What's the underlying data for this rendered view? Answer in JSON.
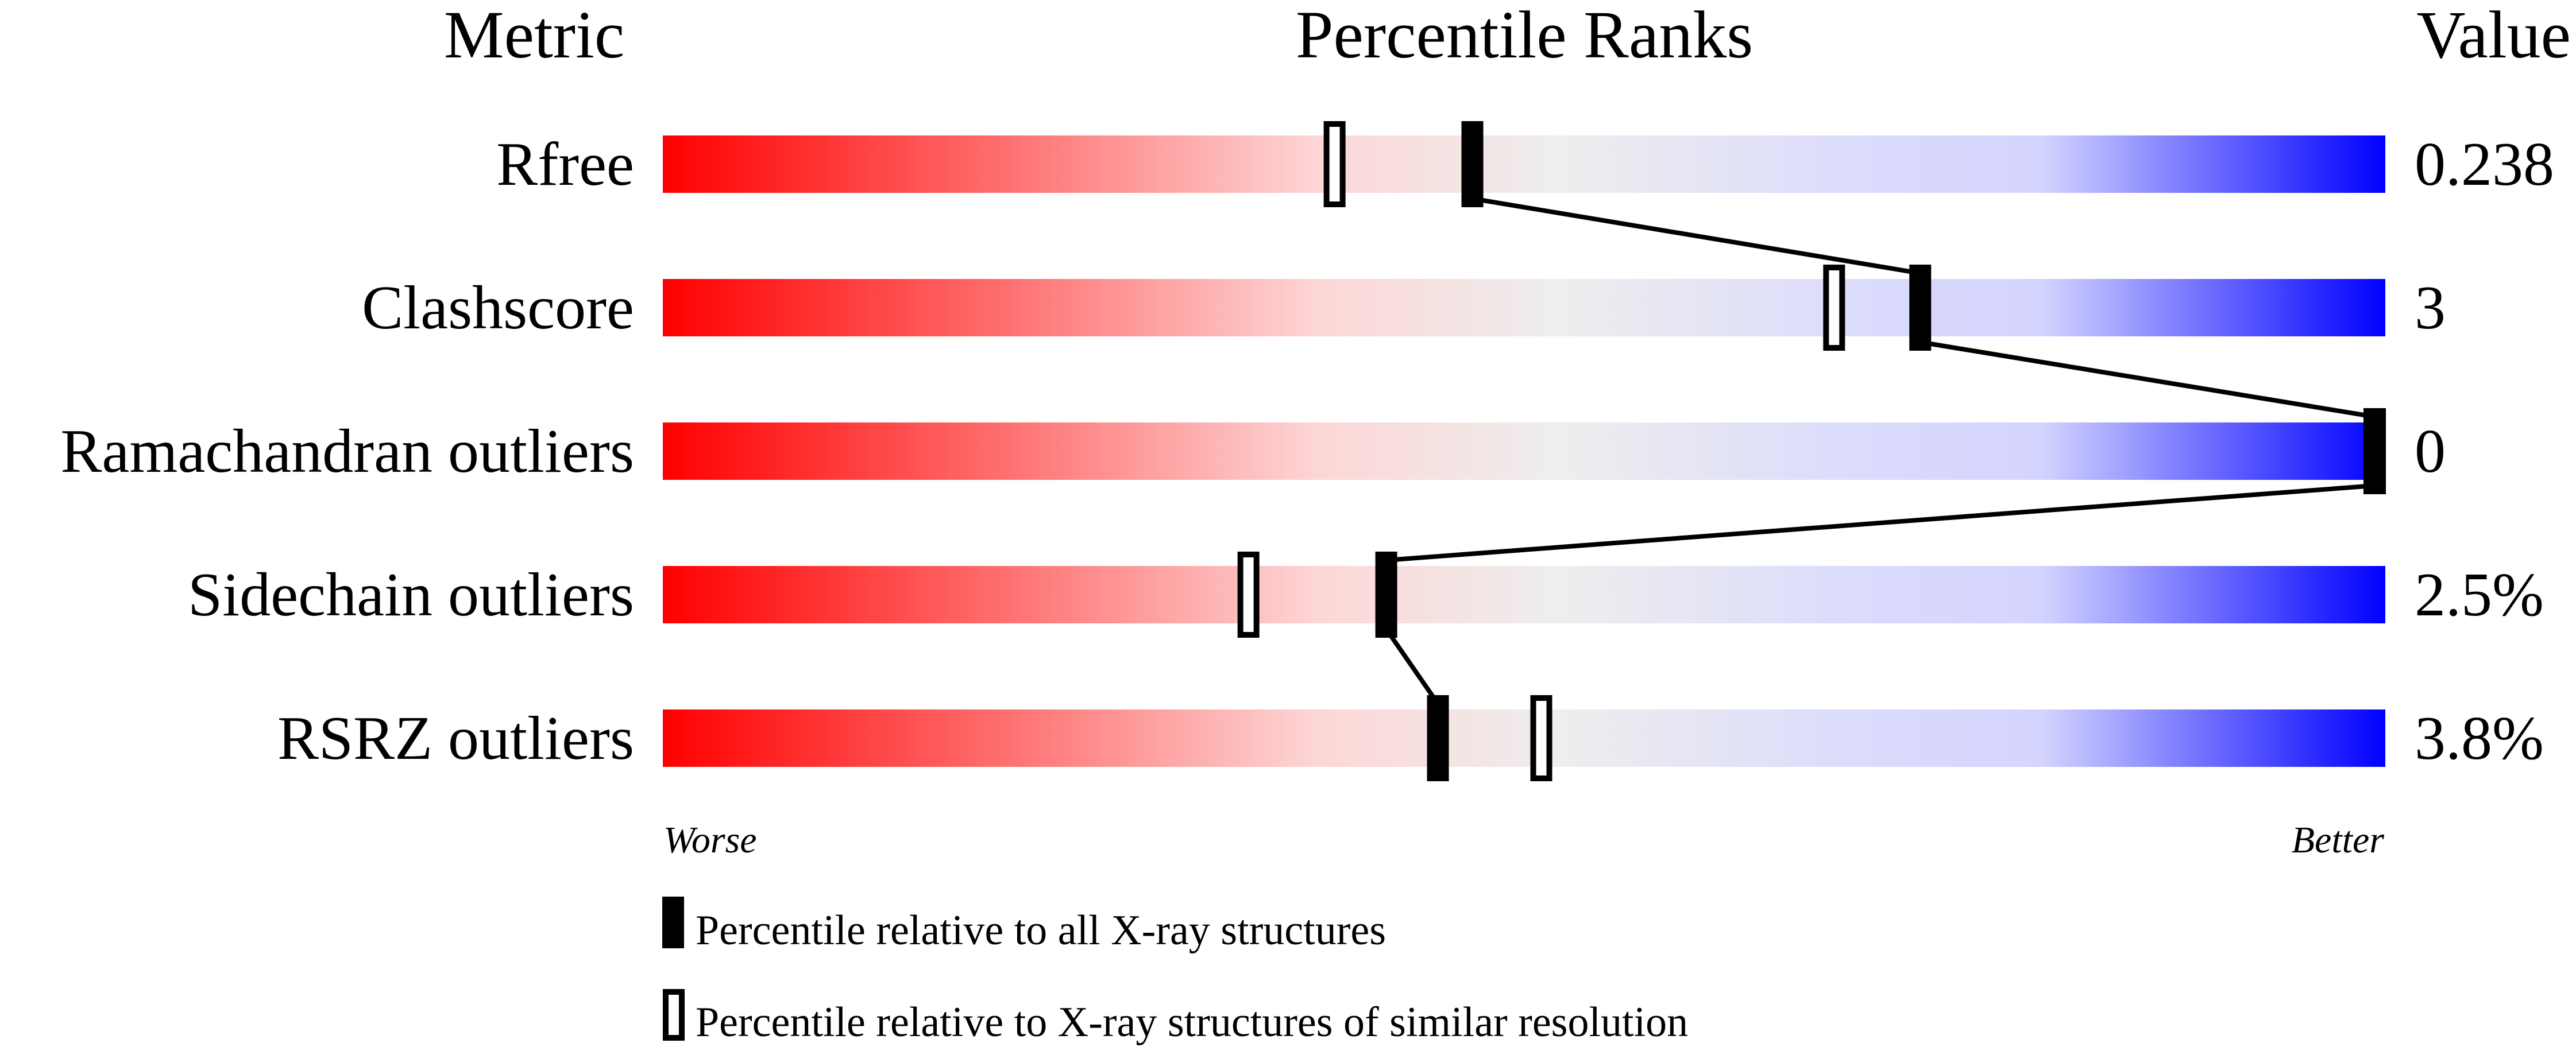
{
  "chart_data": {
    "type": "percentile-rank-slider",
    "headers": {
      "metric": "Metric",
      "ranks": "Percentile Ranks",
      "value": "Value"
    },
    "xlim": [
      0,
      100
    ],
    "axis_ends": {
      "left": "Worse",
      "right": "Better"
    },
    "gradient_colors": [
      "#ff0000",
      "#ffdddd",
      "#eeeeee",
      "#ddddff",
      "#0000ff"
    ],
    "metrics": [
      {
        "label": "Rfree",
        "value": "0.238",
        "percentile_all": 47,
        "percentile_similar": 39
      },
      {
        "label": "Clashscore",
        "value": "3",
        "percentile_all": 73,
        "percentile_similar": 68
      },
      {
        "label": "Ramachandran outliers",
        "value": "0",
        "percentile_all": 100,
        "percentile_similar": 100
      },
      {
        "label": "Sidechain outliers",
        "value": "2.5%",
        "percentile_all": 42,
        "percentile_similar": 34
      },
      {
        "label": "RSRZ outliers",
        "value": "3.8%",
        "percentile_all": 45,
        "percentile_similar": 51
      }
    ],
    "legend": [
      {
        "marker": "filled",
        "label": "Percentile relative to all X-ray structures"
      },
      {
        "marker": "hollow",
        "label": "Percentile relative to X-ray structures of similar resolution"
      }
    ]
  }
}
